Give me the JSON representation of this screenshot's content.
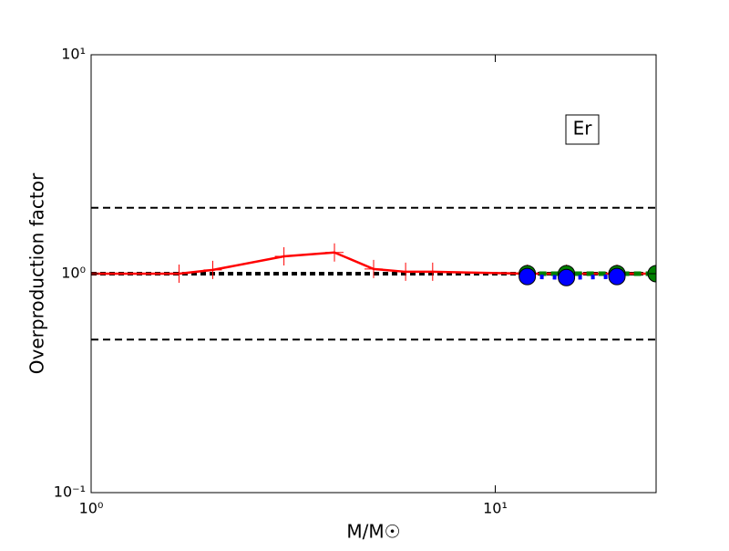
{
  "chart_data": {
    "type": "line",
    "xlabel": "M/M☉",
    "ylabel": "Overproduction factor",
    "annotation": "Er",
    "xscale": "log",
    "yscale": "log",
    "xlim": [
      1,
      25
    ],
    "ylim": [
      0.1,
      10
    ],
    "xticks": [
      {
        "value": 1,
        "label": "10⁰"
      },
      {
        "value": 10,
        "label": "10¹"
      }
    ],
    "yticks": [
      {
        "value": 0.1,
        "label": "10⁻¹"
      },
      {
        "value": 1,
        "label": "10⁰"
      },
      {
        "value": 10,
        "label": "10¹"
      }
    ],
    "reference_lines": [
      2,
      1,
      0.5
    ],
    "series": [
      {
        "color": "#ff0000",
        "marker": "plus",
        "linestyle": "solid",
        "x": [
          1,
          1.65,
          2,
          3,
          4,
          5,
          6,
          7,
          12,
          15,
          20,
          25
        ],
        "values": [
          1.0,
          1.0,
          1.04,
          1.2,
          1.25,
          1.05,
          1.02,
          1.02,
          1.0,
          1.0,
          1.0,
          1.0
        ]
      },
      {
        "color": "#008000",
        "marker": "circle",
        "linestyle": "dashed",
        "x": [
          12,
          15,
          20,
          25
        ],
        "values": [
          1.0,
          1.0,
          1.0,
          1.0
        ]
      },
      {
        "color": "#0000ff",
        "marker": "circle",
        "linestyle": "dotted",
        "x": [
          12,
          15,
          20
        ],
        "values": [
          0.97,
          0.96,
          0.97
        ]
      }
    ]
  }
}
